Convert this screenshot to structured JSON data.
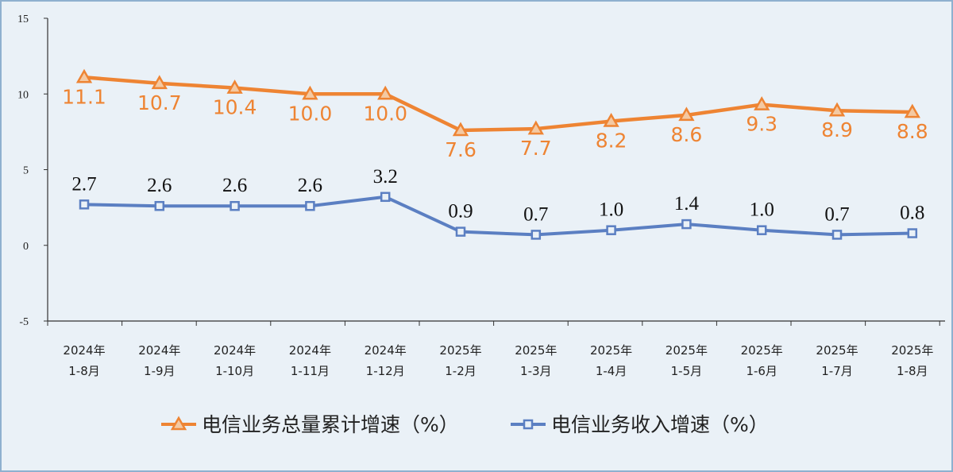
{
  "chart_data": {
    "type": "line",
    "title": "",
    "xlabel": "",
    "ylabel": "",
    "ylim": [
      -5,
      15
    ],
    "yticks": [
      "15",
      "10",
      "5",
      "0",
      "-5"
    ],
    "categories": [
      [
        "2024年",
        "1-8月"
      ],
      [
        "2024年",
        "1-9月"
      ],
      [
        "2024年",
        "1-10月"
      ],
      [
        "2024年",
        "1-11月"
      ],
      [
        "2024年",
        "1-12月"
      ],
      [
        "2025年",
        "1-2月"
      ],
      [
        "2025年",
        "1-3月"
      ],
      [
        "2025年",
        "1-4月"
      ],
      [
        "2025年",
        "1-5月"
      ],
      [
        "2025年",
        "1-6月"
      ],
      [
        "2025年",
        "1-7月"
      ],
      [
        "2025年",
        "1-8月"
      ]
    ],
    "series": [
      {
        "name": "电信业务总量累计增速（%）",
        "color": "#ee8433",
        "marker": "triangle",
        "values": [
          11.1,
          10.7,
          10.4,
          10.0,
          10.0,
          7.6,
          7.7,
          8.2,
          8.6,
          9.3,
          8.9,
          8.8
        ],
        "labels": [
          "11.1",
          "10.7",
          "10.4",
          "10.0",
          "10.0",
          "7.6",
          "7.7",
          "8.2",
          "8.6",
          "9.3",
          "8.9",
          "8.8"
        ]
      },
      {
        "name": "电信业务收入增速（%）",
        "color": "#5b7fc2",
        "marker": "square",
        "values": [
          2.7,
          2.6,
          2.6,
          2.6,
          3.2,
          0.9,
          0.7,
          1.0,
          1.4,
          1.0,
          0.7,
          0.8
        ],
        "labels": [
          "2.7",
          "2.6",
          "2.6",
          "2.6",
          "3.2",
          "0.9",
          "0.7",
          "1.0",
          "1.4",
          "1.0",
          "0.7",
          "0.8"
        ]
      }
    ],
    "legend": "bottom-center"
  }
}
